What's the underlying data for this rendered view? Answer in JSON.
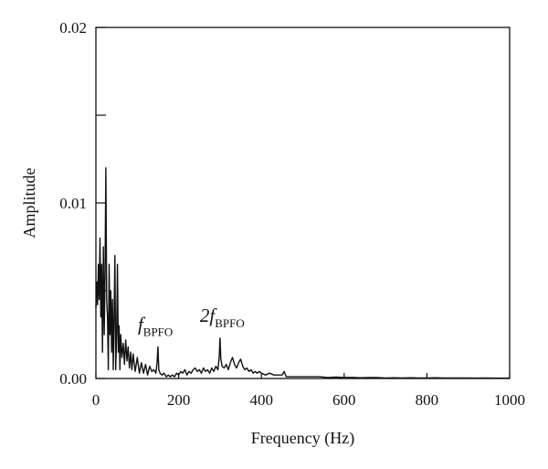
{
  "chart_data": {
    "type": "line",
    "title": "",
    "xlabel": "Frequency (Hz)",
    "ylabel": "Amplitude",
    "xlim": [
      0,
      1000
    ],
    "ylim": [
      0,
      0.02
    ],
    "xticks": [
      0,
      200,
      400,
      600,
      800,
      1000
    ],
    "xtick_labels": [
      "0",
      "200",
      "400",
      "600",
      "800",
      "1000"
    ],
    "yticks": [
      0,
      0.01,
      0.02
    ],
    "ytick_labels": [
      "0.00",
      "0.01",
      "0.02"
    ],
    "grid": false,
    "legend": "none",
    "line_color": "#111111",
    "series": [
      {
        "x": [
          0,
          2,
          4,
          6,
          8,
          10,
          12,
          14,
          16,
          18,
          20,
          22,
          24,
          26,
          28,
          30,
          32,
          34,
          36,
          38,
          40,
          42,
          44,
          46,
          48,
          50,
          52,
          54,
          56,
          58,
          60,
          63,
          66,
          69,
          72,
          75,
          78,
          81,
          84,
          87,
          90,
          95,
          100,
          105,
          110,
          115,
          120,
          125,
          130,
          135,
          140,
          145,
          148,
          150,
          152,
          155,
          160,
          165,
          170,
          175,
          180,
          185,
          190,
          195,
          200,
          205,
          210,
          215,
          220,
          225,
          230,
          235,
          240,
          245,
          250,
          255,
          260,
          265,
          270,
          275,
          280,
          285,
          290,
          295,
          298,
          300,
          302,
          305,
          310,
          315,
          320,
          325,
          330,
          335,
          340,
          345,
          350,
          355,
          360,
          365,
          370,
          375,
          380,
          385,
          390,
          395,
          400,
          410,
          420,
          430,
          440,
          450,
          455,
          460,
          470,
          480,
          490,
          500,
          520,
          540,
          560,
          580,
          600,
          620,
          640,
          660,
          680,
          700,
          720,
          740,
          760,
          780,
          800,
          820,
          840,
          860,
          880,
          900,
          920,
          940,
          960,
          980,
          1000
        ],
        "y": [
          0.004,
          0.0055,
          0.0042,
          0.0065,
          0.0045,
          0.008,
          0.0035,
          0.0065,
          0.0015,
          0.0075,
          0.0025,
          0.006,
          0.012,
          0.0045,
          0.0035,
          0.0005,
          0.0065,
          0.0025,
          0.005,
          0.0015,
          0.0045,
          0.0005,
          0.0035,
          0.007,
          0.0005,
          0.0025,
          0.0065,
          0.0015,
          0.003,
          0.0005,
          0.0025,
          0.0012,
          0.002,
          0.0008,
          0.0022,
          0.001,
          0.0018,
          0.0006,
          0.0015,
          0.0005,
          0.0014,
          0.0004,
          0.0012,
          0.0003,
          0.0009,
          0.0003,
          0.0008,
          0.0002,
          0.0007,
          0.0004,
          0.0005,
          0.0003,
          0.0009,
          0.0018,
          0.0005,
          0.0003,
          0.0002,
          0.0003,
          0.0001,
          0.0002,
          0.0001,
          0.0002,
          0.0001,
          0.0003,
          0.0002,
          0.0004,
          0.0003,
          0.0005,
          0.0002,
          0.0004,
          0.0003,
          0.0005,
          0.0006,
          0.0004,
          0.0005,
          0.0003,
          0.0006,
          0.0004,
          0.0005,
          0.0003,
          0.0006,
          0.0004,
          0.0007,
          0.0005,
          0.0012,
          0.0023,
          0.0011,
          0.0007,
          0.0006,
          0.0008,
          0.0005,
          0.0009,
          0.0012,
          0.0008,
          0.0006,
          0.0009,
          0.0011,
          0.0007,
          0.0005,
          0.0006,
          0.0004,
          0.0005,
          0.0003,
          0.0004,
          0.0003,
          0.0004,
          0.0003,
          0.0002,
          0.0003,
          0.0002,
          0.0002,
          0.0002,
          0.0004,
          0.0001,
          0.0001,
          0.0001,
          0.0001,
          0.0001,
          0.0001,
          0.0001,
          5e-05,
          8e-05,
          5e-05,
          6e-05,
          4e-05,
          5e-05,
          5e-05,
          3e-05,
          4e-05,
          3e-05,
          4e-05,
          3e-05,
          3e-05,
          4e-05,
          3e-05,
          3e-05,
          3e-05,
          3e-05,
          2e-05,
          3e-05,
          2e-05,
          2e-05,
          2e-05
        ]
      }
    ],
    "annotations": [
      {
        "x": 150,
        "y": 0.0021,
        "main": "f",
        "sub": "BPFO"
      },
      {
        "x": 300,
        "y": 0.0026,
        "main": "2f",
        "sub": "BPFO"
      }
    ]
  }
}
